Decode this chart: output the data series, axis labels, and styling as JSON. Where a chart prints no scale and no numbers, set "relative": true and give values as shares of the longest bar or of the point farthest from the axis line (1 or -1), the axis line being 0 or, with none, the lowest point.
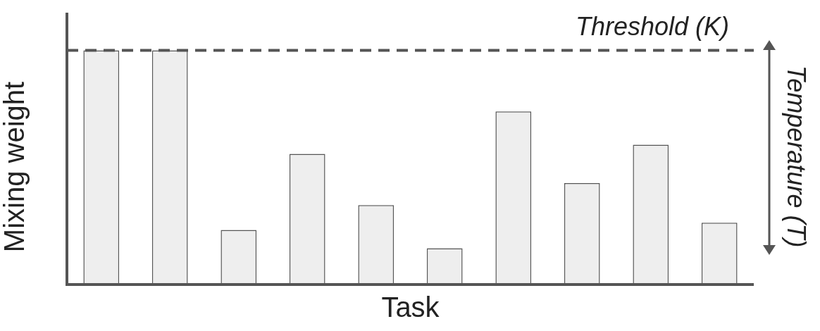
{
  "chart_data": {
    "type": "bar",
    "relative": true,
    "xlabel": "Task",
    "ylabel": "Mixing weight",
    "categories": [
      null,
      null,
      null,
      null,
      null,
      null,
      null,
      null,
      null,
      null
    ],
    "series": [
      {
        "color": "#eeeeee",
        "values": [
          1,
          1,
          0.233,
          0.558,
          0.339,
          0.155,
          0.739,
          0.433,
          0.597,
          0.264
        ]
      }
    ],
    "ref_lines": [
      {
        "axis": "y",
        "value": 1,
        "label": "Threshold (K)",
        "color": "#555555",
        "line_style": "dashed"
      }
    ],
    "annotations": [
      "Temperature (T)"
    ],
    "grid": false,
    "legend": false
  }
}
